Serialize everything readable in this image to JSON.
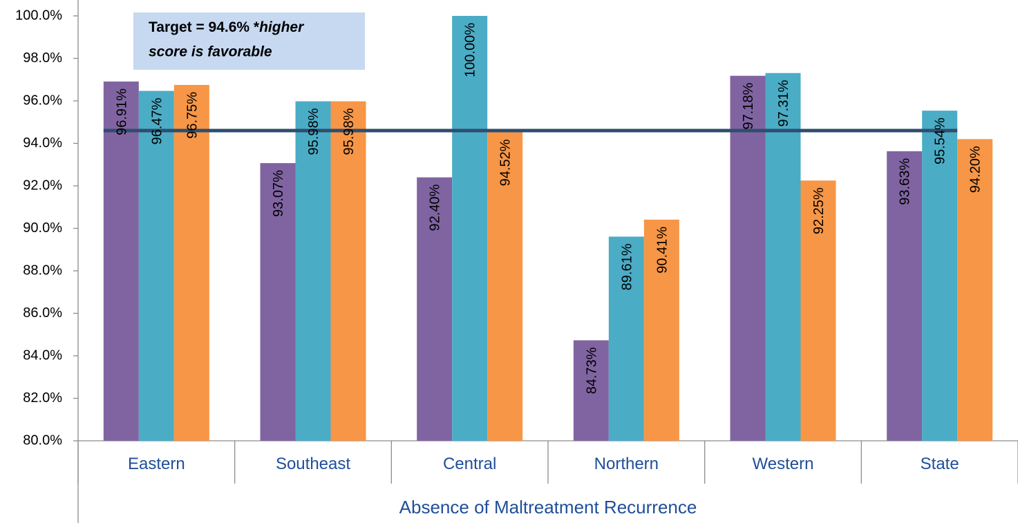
{
  "chart_data": {
    "type": "bar",
    "categories": [
      "Eastern",
      "Southeast",
      "Central",
      "Northern",
      "Western",
      "State"
    ],
    "series": [
      {
        "values": [
          96.91,
          93.07,
          92.4,
          84.73,
          97.18,
          93.63
        ],
        "labels": [
          "96.91%",
          "93.07%",
          "92.40%",
          "84.73%",
          "97.18%",
          "93.63%"
        ]
      },
      {
        "values": [
          96.47,
          95.98,
          100.0,
          89.61,
          97.31,
          95.54
        ],
        "labels": [
          "96.47%",
          "95.98%",
          "100.00%",
          "89.61%",
          "97.31%",
          "95.54%"
        ]
      },
      {
        "values": [
          96.75,
          95.98,
          94.52,
          90.41,
          92.25,
          94.2
        ],
        "labels": [
          "96.75%",
          "95.98%",
          "94.52%",
          "90.41%",
          "92.25%",
          "94.20%"
        ]
      }
    ],
    "series_colors": [
      "#8064a2",
      "#4bacc6",
      "#f79646"
    ],
    "target_value": 94.6,
    "target_color": "#2e4d6f",
    "xlabel": "Absence of Maltreatment Recurrence",
    "ylim": [
      80,
      100
    ],
    "yticks": [
      80,
      82,
      84,
      86,
      88,
      90,
      92,
      94,
      96,
      98,
      100
    ],
    "ytick_labels": [
      "80.0%",
      "82.0%",
      "84.0%",
      "86.0%",
      "88.0%",
      "90.0%",
      "92.0%",
      "94.0%",
      "96.0%",
      "98.0%",
      "100.0%"
    ],
    "annotation": {
      "line1_bold": "Target = 94.6% *",
      "line1_italic": "higher",
      "line2_italic": "score is favorable",
      "fill": "#c6d9f1"
    },
    "grid": false,
    "legend": "none"
  }
}
